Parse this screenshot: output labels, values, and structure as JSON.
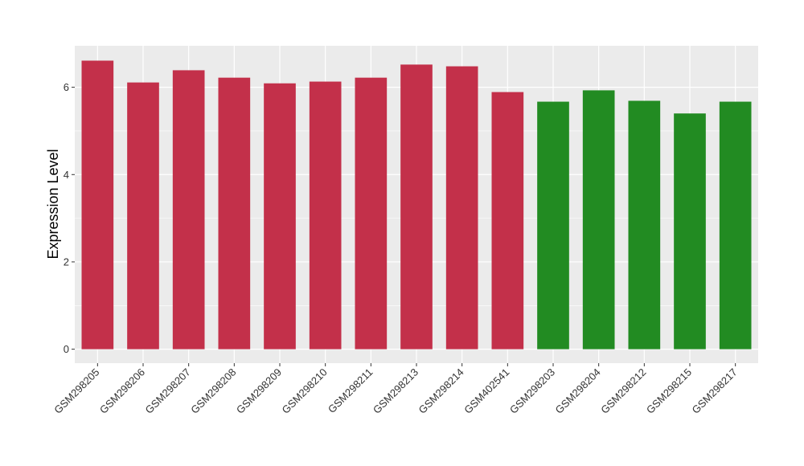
{
  "chart_data": {
    "type": "bar",
    "title": "",
    "xlabel": "",
    "ylabel": "Expression Level",
    "categories": [
      "GSM298205",
      "GSM298206",
      "GSM298207",
      "GSM298208",
      "GSM298209",
      "GSM298210",
      "GSM298211",
      "GSM298213",
      "GSM298214",
      "GSM402541",
      "GSM298203",
      "GSM298204",
      "GSM298212",
      "GSM298215",
      "GSM298217"
    ],
    "values": [
      6.61,
      6.11,
      6.39,
      6.22,
      6.09,
      6.13,
      6.22,
      6.52,
      6.48,
      5.89,
      5.67,
      5.93,
      5.69,
      5.4,
      5.67
    ],
    "bar_colors": [
      "#C3304A",
      "#C3304A",
      "#C3304A",
      "#C3304A",
      "#C3304A",
      "#C3304A",
      "#C3304A",
      "#C3304A",
      "#C3304A",
      "#C3304A",
      "#228B22",
      "#228B22",
      "#228B22",
      "#228B22",
      "#228B22"
    ],
    "ylim": [
      -0.32,
      6.95
    ],
    "yticks": [
      0,
      2,
      4,
      6
    ],
    "ytick_labels": [
      "0",
      "2",
      "4",
      "6"
    ],
    "grid": true,
    "legend": "none",
    "panel_background": "#EBEBEB"
  }
}
